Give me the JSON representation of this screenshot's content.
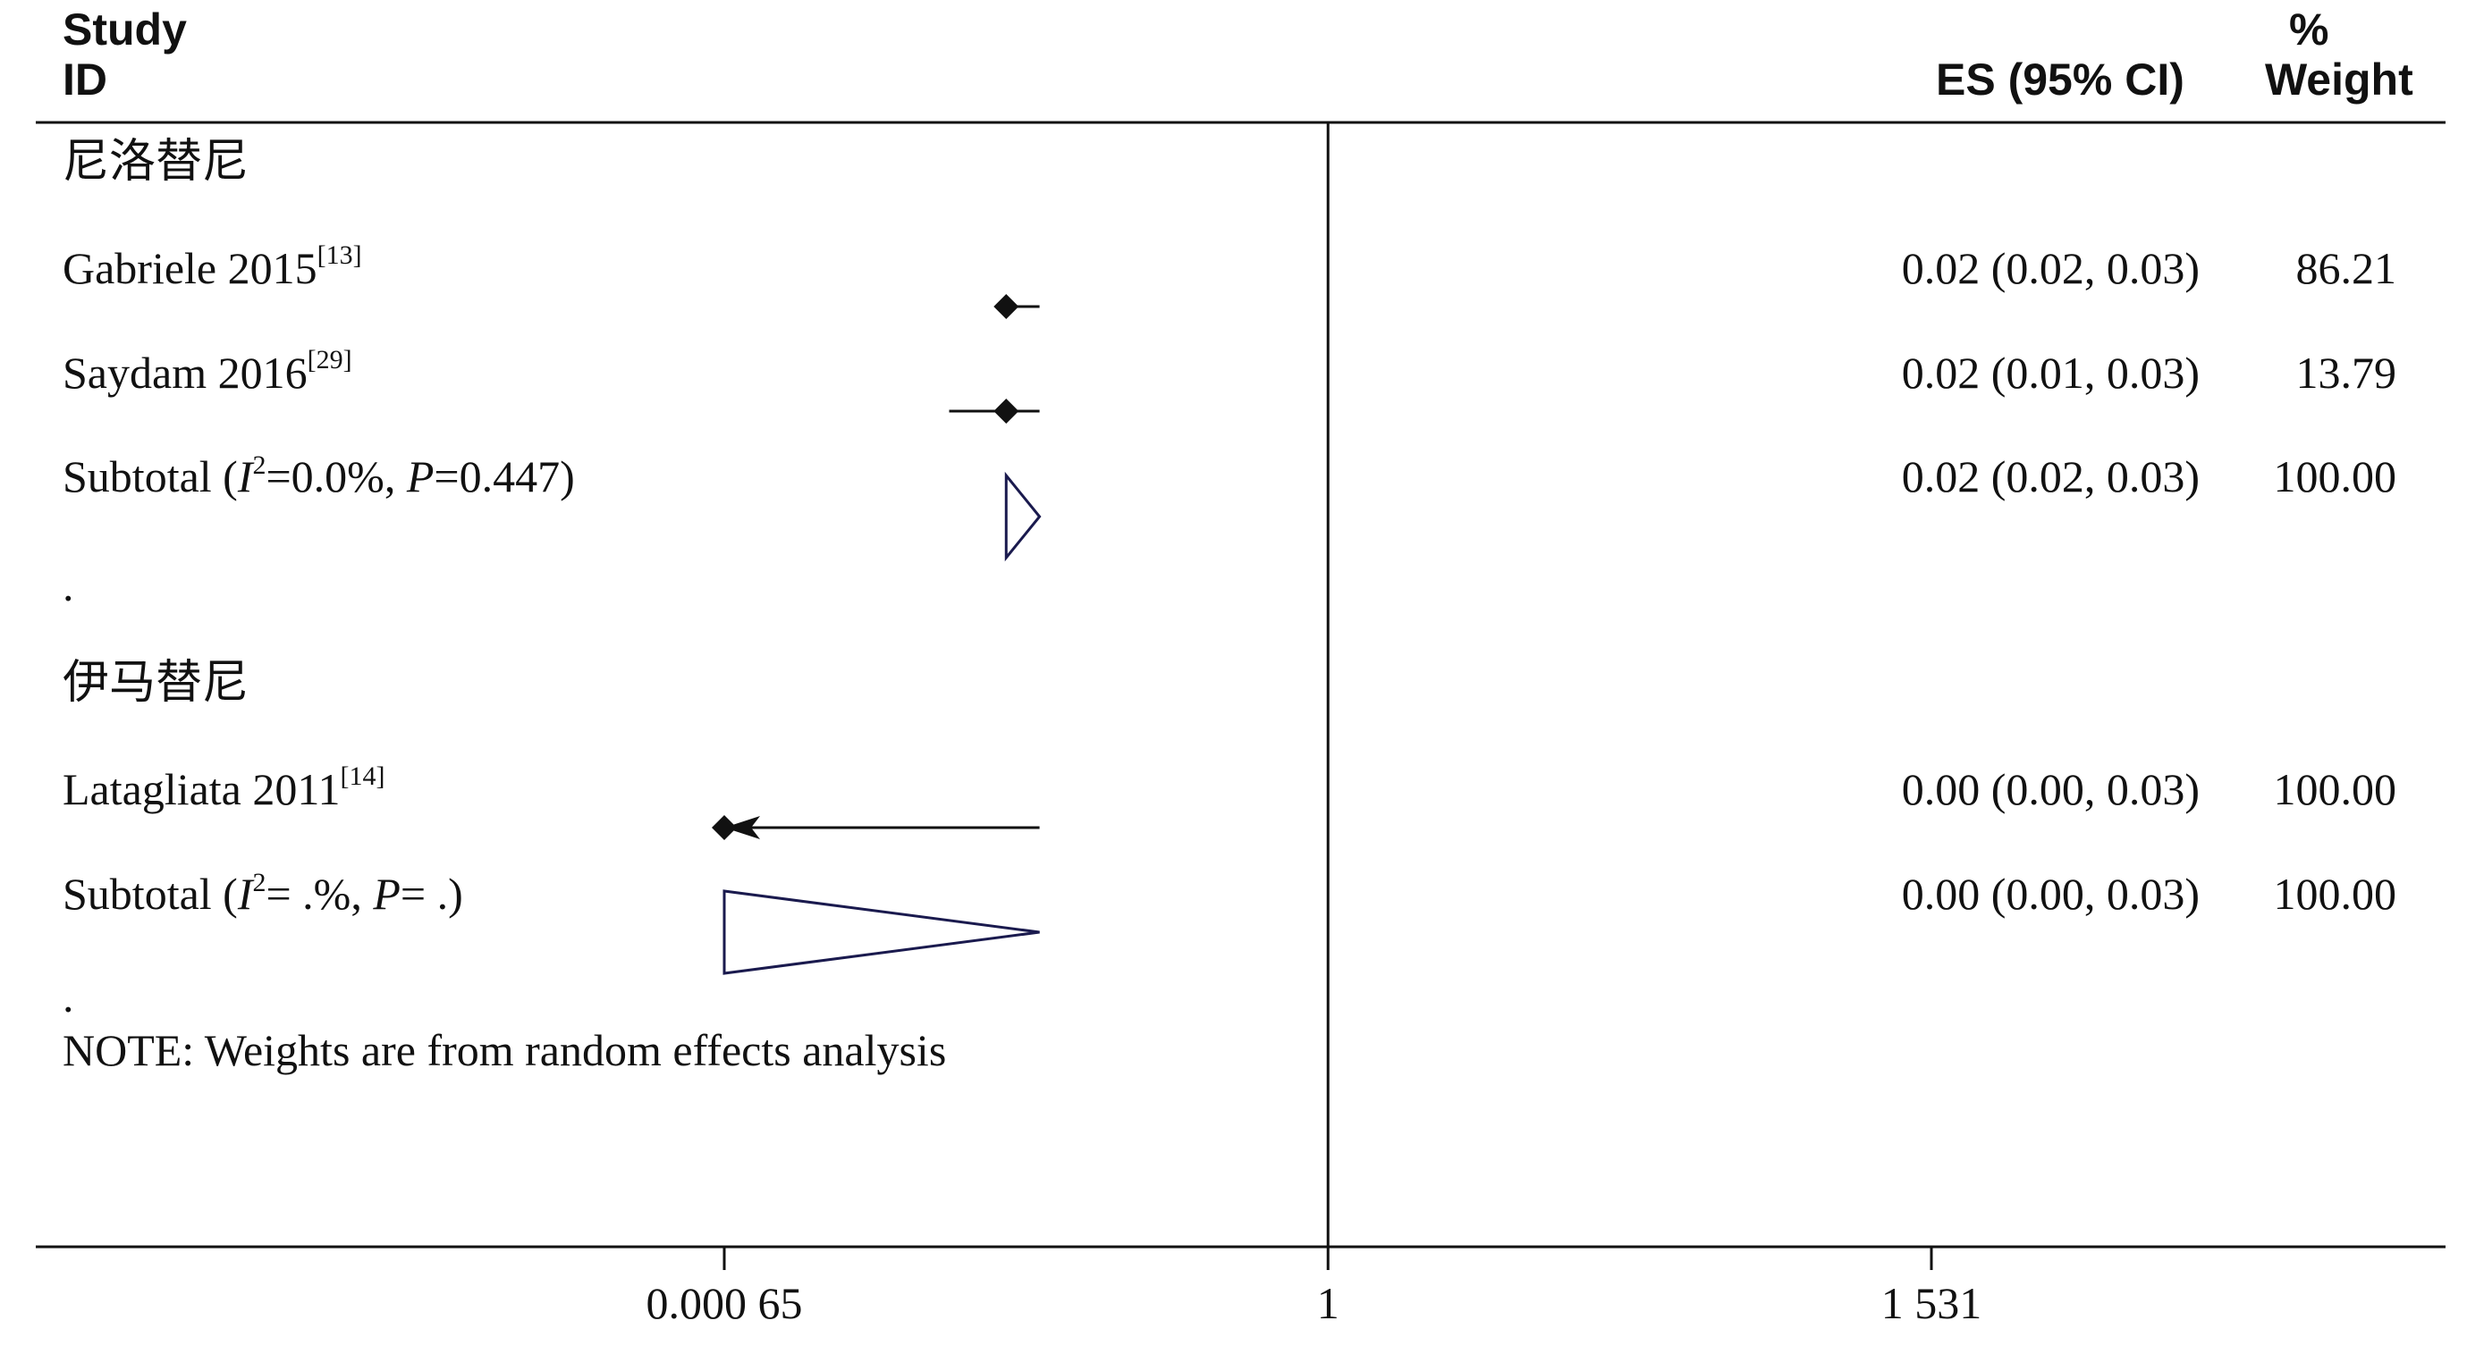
{
  "header": {
    "study": "Study",
    "id": "ID",
    "es": "ES (95% CI)",
    "pct": "%",
    "weight": "Weight"
  },
  "groups": [
    {
      "name": "尼洛替尼",
      "studies": [
        {
          "label": "Gabriele 2015",
          "ref": "[13]",
          "es_text": "0.02 (0.02, 0.03)",
          "weight": "86.21"
        },
        {
          "label": "Saydam 2016",
          "ref": "[29]",
          "es_text": "0.02 (0.01, 0.03)",
          "weight": "13.79"
        }
      ],
      "subtotal": {
        "prefix": "Subtotal  (",
        "i": "I",
        "sup": "2",
        "mid": "=0.0%, ",
        "p": "P",
        "suffix": "=0.447)",
        "es_text": "0.02 (0.02, 0.03)",
        "weight": "100.00"
      },
      "sep": "."
    },
    {
      "name": "伊马替尼",
      "studies": [
        {
          "label": "Latagliata 2011",
          "ref": "[14]",
          "es_text": "0.00 (0.00, 0.03)",
          "weight": "100.00"
        }
      ],
      "subtotal": {
        "prefix": "Subtotal  (",
        "i": "I",
        "sup": "2",
        "mid": "= .%, ",
        "p": "P",
        "suffix": "= .)",
        "es_text": "0.00 (0.00, 0.03)",
        "weight": "100.00"
      },
      "sep": "."
    }
  ],
  "note": "NOTE: Weights are from random effects analysis",
  "chart_data": {
    "type": "forest",
    "scale": "log",
    "null_line": 1,
    "x_ticks": [
      {
        "value": 0.00065,
        "label": "0.000 65"
      },
      {
        "value": 1,
        "label": "1"
      },
      {
        "value": 1531,
        "label": "1 531"
      }
    ],
    "rows": [
      {
        "kind": "study",
        "name": "Gabriele 2015",
        "es": 0.02,
        "lo": 0.02,
        "hi": 0.03,
        "weight": 86.21
      },
      {
        "kind": "study",
        "name": "Saydam 2016",
        "es": 0.02,
        "lo": 0.01,
        "hi": 0.03,
        "weight": 13.79
      },
      {
        "kind": "subtotal",
        "name": "Subtotal 尼洛替尼",
        "es": 0.02,
        "lo": 0.02,
        "hi": 0.03,
        "weight": 100.0
      },
      {
        "kind": "study",
        "name": "Latagliata 2011",
        "es": 0.0,
        "lo": 0.0,
        "hi": 0.03,
        "weight": 100.0,
        "lower_arrow": true
      },
      {
        "kind": "subtotal",
        "name": "Subtotal 伊马替尼",
        "es": 0.0,
        "lo": 0.0,
        "hi": 0.03,
        "weight": 100.0
      }
    ]
  }
}
